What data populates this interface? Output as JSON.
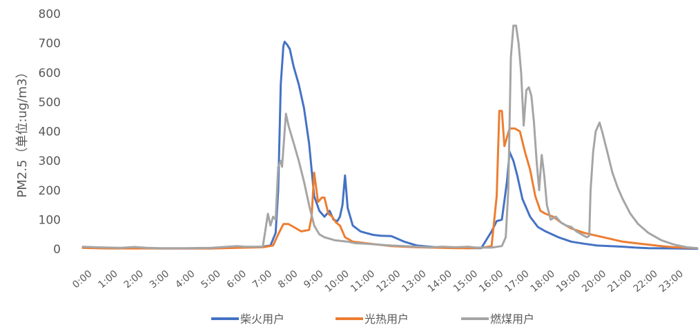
{
  "chart_data": {
    "type": "line",
    "ylabel": "PM2.5（单位:ug/m3）",
    "ylim": [
      0,
      800
    ],
    "yticks": [
      0,
      100,
      200,
      300,
      400,
      500,
      600,
      700,
      800
    ],
    "xlim": [
      0,
      23.9
    ],
    "xtick_labels": [
      "0:00",
      "1:00",
      "2:00",
      "3:00",
      "4:00",
      "5:00",
      "6:00",
      "7:00",
      "8:00",
      "9:00",
      "10:00",
      "11:00",
      "12:00",
      "13:00",
      "14:00",
      "15:00",
      "16:00",
      "17:00",
      "18:00",
      "19:00",
      "20:00",
      "21:00",
      "22:00",
      "23:00"
    ],
    "grid": false,
    "legend_position": "bottom",
    "series": [
      {
        "name": "柴火用户",
        "color": "#4472C4",
        "points": [
          [
            0,
            5
          ],
          [
            1,
            3
          ],
          [
            2,
            3
          ],
          [
            3,
            2
          ],
          [
            4,
            2
          ],
          [
            5,
            2
          ],
          [
            6,
            5
          ],
          [
            7,
            8
          ],
          [
            7.3,
            12
          ],
          [
            7.5,
            55
          ],
          [
            7.6,
            200
          ],
          [
            7.7,
            560
          ],
          [
            7.8,
            690
          ],
          [
            7.85,
            705
          ],
          [
            7.95,
            695
          ],
          [
            8.05,
            680
          ],
          [
            8.2,
            620
          ],
          [
            8.4,
            560
          ],
          [
            8.6,
            480
          ],
          [
            8.8,
            360
          ],
          [
            9,
            180
          ],
          [
            9.2,
            130
          ],
          [
            9.4,
            110
          ],
          [
            9.6,
            130
          ],
          [
            9.75,
            100
          ],
          [
            9.9,
            95
          ],
          [
            10,
            110
          ],
          [
            10.1,
            150
          ],
          [
            10.2,
            250
          ],
          [
            10.3,
            140
          ],
          [
            10.5,
            80
          ],
          [
            10.8,
            60
          ],
          [
            11,
            55
          ],
          [
            11.3,
            48
          ],
          [
            11.6,
            45
          ],
          [
            12,
            44
          ],
          [
            12.5,
            25
          ],
          [
            13,
            12
          ],
          [
            13.5,
            8
          ],
          [
            14,
            5
          ],
          [
            14.5,
            4
          ],
          [
            15,
            3
          ],
          [
            15.5,
            3
          ],
          [
            15.9,
            60
          ],
          [
            16.1,
            95
          ],
          [
            16.3,
            100
          ],
          [
            16.5,
            230
          ],
          [
            16.6,
            330
          ],
          [
            16.75,
            300
          ],
          [
            16.9,
            250
          ],
          [
            17.1,
            170
          ],
          [
            17.4,
            110
          ],
          [
            17.7,
            75
          ],
          [
            18,
            60
          ],
          [
            18.5,
            40
          ],
          [
            19,
            25
          ],
          [
            19.5,
            18
          ],
          [
            20,
            12
          ],
          [
            20.5,
            10
          ],
          [
            21,
            8
          ],
          [
            21.5,
            5
          ],
          [
            22,
            3
          ],
          [
            23,
            2
          ],
          [
            23.9,
            1
          ]
        ]
      },
      {
        "name": "光热用户",
        "color": "#ED7D31",
        "points": [
          [
            0,
            4
          ],
          [
            1,
            2
          ],
          [
            2,
            2
          ],
          [
            3,
            2
          ],
          [
            4,
            2
          ],
          [
            5,
            2
          ],
          [
            6,
            4
          ],
          [
            7,
            6
          ],
          [
            7.4,
            12
          ],
          [
            7.6,
            50
          ],
          [
            7.8,
            85
          ],
          [
            8,
            85
          ],
          [
            8.2,
            75
          ],
          [
            8.5,
            60
          ],
          [
            8.8,
            65
          ],
          [
            8.9,
            110
          ],
          [
            9,
            260
          ],
          [
            9.15,
            160
          ],
          [
            9.3,
            175
          ],
          [
            9.4,
            175
          ],
          [
            9.55,
            120
          ],
          [
            9.7,
            110
          ],
          [
            9.85,
            90
          ],
          [
            10,
            80
          ],
          [
            10.2,
            40
          ],
          [
            10.5,
            25
          ],
          [
            11,
            20
          ],
          [
            11.5,
            15
          ],
          [
            12,
            10
          ],
          [
            12.5,
            8
          ],
          [
            13,
            6
          ],
          [
            13.5,
            5
          ],
          [
            14,
            4
          ],
          [
            14.5,
            3
          ],
          [
            15,
            3
          ],
          [
            15.5,
            4
          ],
          [
            15.9,
            10
          ],
          [
            16.1,
            180
          ],
          [
            16.2,
            470
          ],
          [
            16.3,
            470
          ],
          [
            16.4,
            350
          ],
          [
            16.5,
            380
          ],
          [
            16.6,
            410
          ],
          [
            16.8,
            410
          ],
          [
            17,
            400
          ],
          [
            17.2,
            330
          ],
          [
            17.4,
            270
          ],
          [
            17.6,
            180
          ],
          [
            17.8,
            130
          ],
          [
            18,
            120
          ],
          [
            18.3,
            110
          ],
          [
            18.6,
            90
          ],
          [
            19,
            70
          ],
          [
            19.5,
            55
          ],
          [
            20,
            45
          ],
          [
            20.5,
            35
          ],
          [
            21,
            25
          ],
          [
            21.5,
            20
          ],
          [
            22,
            15
          ],
          [
            22.5,
            10
          ],
          [
            23,
            6
          ],
          [
            23.9,
            3
          ]
        ]
      },
      {
        "name": "燃煤用户",
        "color": "#A5A5A5",
        "points": [
          [
            0,
            8
          ],
          [
            0.5,
            6
          ],
          [
            1,
            5
          ],
          [
            1.5,
            4
          ],
          [
            2,
            7
          ],
          [
            2.5,
            4
          ],
          [
            3,
            3
          ],
          [
            4,
            3
          ],
          [
            5,
            4
          ],
          [
            6,
            10
          ],
          [
            6.3,
            8
          ],
          [
            7,
            8
          ],
          [
            7.2,
            120
          ],
          [
            7.3,
            80
          ],
          [
            7.4,
            110
          ],
          [
            7.5,
            100
          ],
          [
            7.6,
            280
          ],
          [
            7.7,
            300
          ],
          [
            7.75,
            280
          ],
          [
            7.85,
            400
          ],
          [
            7.9,
            460
          ],
          [
            8,
            420
          ],
          [
            8.2,
            360
          ],
          [
            8.4,
            300
          ],
          [
            8.6,
            230
          ],
          [
            8.8,
            150
          ],
          [
            9,
            80
          ],
          [
            9.2,
            50
          ],
          [
            9.4,
            40
          ],
          [
            9.6,
            35
          ],
          [
            9.8,
            30
          ],
          [
            10,
            28
          ],
          [
            10.3,
            25
          ],
          [
            10.6,
            20
          ],
          [
            11,
            18
          ],
          [
            11.5,
            15
          ],
          [
            12,
            12
          ],
          [
            12.5,
            10
          ],
          [
            13,
            8
          ],
          [
            13.5,
            6
          ],
          [
            14,
            8
          ],
          [
            14.5,
            6
          ],
          [
            15,
            8
          ],
          [
            15.3,
            5
          ],
          [
            15.6,
            5
          ],
          [
            15.9,
            5
          ],
          [
            16.3,
            10
          ],
          [
            16.45,
            40
          ],
          [
            16.55,
            200
          ],
          [
            16.65,
            650
          ],
          [
            16.75,
            760
          ],
          [
            16.85,
            760
          ],
          [
            16.95,
            700
          ],
          [
            17.05,
            600
          ],
          [
            17.15,
            420
          ],
          [
            17.25,
            540
          ],
          [
            17.35,
            550
          ],
          [
            17.45,
            520
          ],
          [
            17.55,
            430
          ],
          [
            17.65,
            300
          ],
          [
            17.75,
            200
          ],
          [
            17.85,
            320
          ],
          [
            17.95,
            250
          ],
          [
            18.05,
            150
          ],
          [
            18.2,
            100
          ],
          [
            18.4,
            110
          ],
          [
            18.6,
            90
          ],
          [
            18.8,
            80
          ],
          [
            19,
            75
          ],
          [
            19.2,
            60
          ],
          [
            19.4,
            50
          ],
          [
            19.6,
            40
          ],
          [
            19.7,
            45
          ],
          [
            19.75,
            200
          ],
          [
            19.85,
            330
          ],
          [
            19.95,
            400
          ],
          [
            20.1,
            430
          ],
          [
            20.2,
            400
          ],
          [
            20.4,
            330
          ],
          [
            20.6,
            260
          ],
          [
            20.8,
            210
          ],
          [
            21,
            170
          ],
          [
            21.3,
            120
          ],
          [
            21.6,
            85
          ],
          [
            22,
            55
          ],
          [
            22.5,
            30
          ],
          [
            23,
            15
          ],
          [
            23.5,
            6
          ],
          [
            23.9,
            3
          ]
        ]
      }
    ]
  }
}
